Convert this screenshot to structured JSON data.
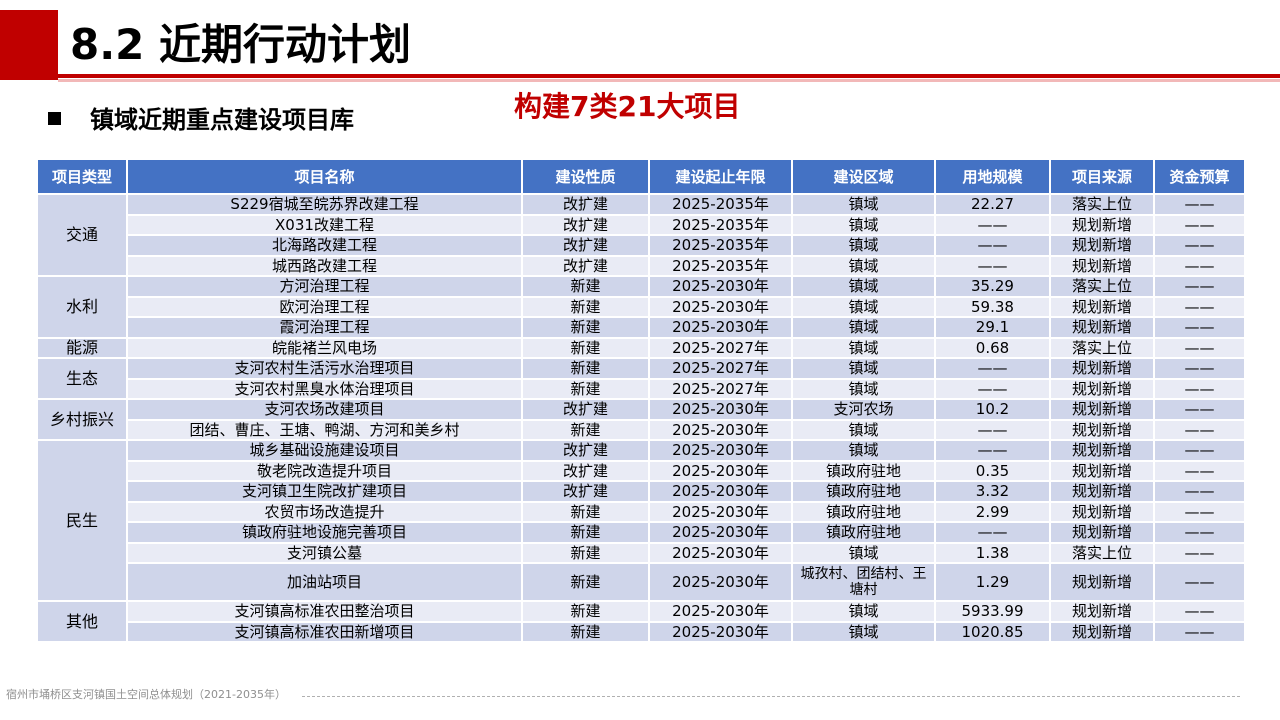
{
  "header": {
    "title": "8.2 近期行动计划",
    "accent_color": "#c00000"
  },
  "section": {
    "title": "镇域近期重点建设项目库",
    "highlight": "构建7类21大项目"
  },
  "table": {
    "header_color": "#4472c4",
    "columns": [
      "项目类型",
      "项目名称",
      "建设性质",
      "建设起止年限",
      "建设区域",
      "用地规模",
      "项目来源",
      "资金预算"
    ],
    "groups": [
      {
        "type": "交通",
        "rows": [
          [
            "S229宿城至皖苏界改建工程",
            "改扩建",
            "2025-2035年",
            "镇域",
            "22.27",
            "落实上位",
            "——"
          ],
          [
            "X031改建工程",
            "改扩建",
            "2025-2035年",
            "镇域",
            "——",
            "规划新增",
            "——"
          ],
          [
            "北海路改建工程",
            "改扩建",
            "2025-2035年",
            "镇域",
            "——",
            "规划新增",
            "——"
          ],
          [
            "城西路改建工程",
            "改扩建",
            "2025-2035年",
            "镇域",
            "——",
            "规划新增",
            "——"
          ]
        ]
      },
      {
        "type": "水利",
        "rows": [
          [
            "方河治理工程",
            "新建",
            "2025-2030年",
            "镇域",
            "35.29",
            "落实上位",
            "——"
          ],
          [
            "欧河治理工程",
            "新建",
            "2025-2030年",
            "镇域",
            "59.38",
            "规划新增",
            "——"
          ],
          [
            "霞河治理工程",
            "新建",
            "2025-2030年",
            "镇域",
            "29.1",
            "规划新增",
            "——"
          ]
        ]
      },
      {
        "type": "能源",
        "rows": [
          [
            "皖能褚兰风电场",
            "新建",
            "2025-2027年",
            "镇域",
            "0.68",
            "落实上位",
            "——"
          ]
        ]
      },
      {
        "type": "生态",
        "rows": [
          [
            "支河农村生活污水治理项目",
            "新建",
            "2025-2027年",
            "镇域",
            "——",
            "规划新增",
            "——"
          ],
          [
            "支河农村黑臭水体治理项目",
            "新建",
            "2025-2027年",
            "镇域",
            "——",
            "规划新增",
            "——"
          ]
        ]
      },
      {
        "type": "乡村振兴",
        "rows": [
          [
            "支河农场改建项目",
            "改扩建",
            "2025-2030年",
            "支河农场",
            "10.2",
            "规划新增",
            "——"
          ],
          [
            "团结、曹庄、王塘、鸭湖、方河和美乡村",
            "新建",
            "2025-2030年",
            "镇域",
            "——",
            "规划新增",
            "——"
          ]
        ]
      },
      {
        "type": "民生",
        "rows": [
          [
            "城乡基础设施建设项目",
            "改扩建",
            "2025-2030年",
            "镇域",
            "——",
            "规划新增",
            "——"
          ],
          [
            "敬老院改造提升项目",
            "改扩建",
            "2025-2030年",
            "镇政府驻地",
            "0.35",
            "规划新增",
            "——"
          ],
          [
            "支河镇卫生院改扩建项目",
            "改扩建",
            "2025-2030年",
            "镇政府驻地",
            "3.32",
            "规划新增",
            "——"
          ],
          [
            "农贸市场改造提升",
            "新建",
            "2025-2030年",
            "镇政府驻地",
            "2.99",
            "规划新增",
            "——"
          ],
          [
            "镇政府驻地设施完善项目",
            "新建",
            "2025-2030年",
            "镇政府驻地",
            "——",
            "规划新增",
            "——"
          ],
          [
            "支河镇公墓",
            "新建",
            "2025-2030年",
            "镇域",
            "1.38",
            "落实上位",
            "——"
          ],
          [
            "加油站项目",
            "新建",
            "2025-2030年",
            "城孜村、团结村、王塘村",
            "1.29",
            "规划新增",
            "——"
          ]
        ]
      },
      {
        "type": "其他",
        "rows": [
          [
            "支河镇高标准农田整治项目",
            "新建",
            "2025-2030年",
            "镇域",
            "5933.99",
            "规划新增",
            "——"
          ],
          [
            "支河镇高标准农田新增项目",
            "新建",
            "2025-2030年",
            "镇域",
            "1020.85",
            "规划新增",
            "——"
          ]
        ]
      }
    ]
  },
  "footer": {
    "text": "宿州市埇桥区支河镇国土空间总体规划（2021-2035年）"
  }
}
